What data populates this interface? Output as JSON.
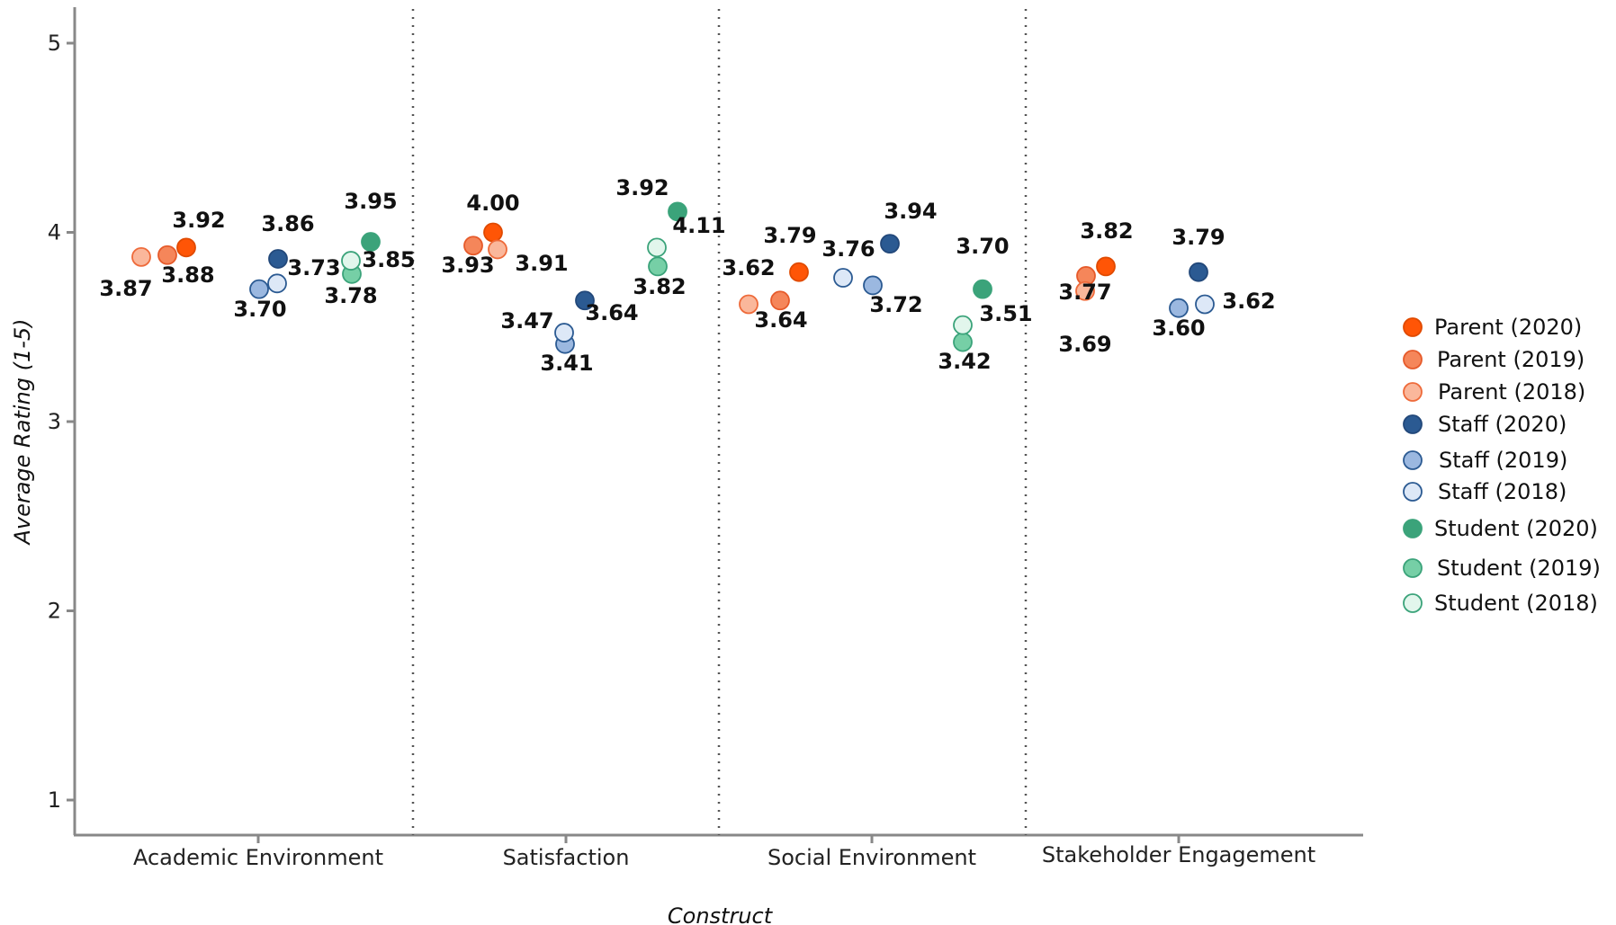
{
  "chart_data": {
    "type": "scatter",
    "title": "",
    "xlabel": "Construct",
    "ylabel": "Average Rating (1-5)",
    "ylim": [
      0.8,
      5.2
    ],
    "yticks": [
      1,
      2,
      3,
      4,
      5
    ],
    "grid": false,
    "legend_position": "right",
    "categories": [
      "Academic Environment",
      "Satisfaction",
      "Social Environment",
      "Stakeholder Engagement"
    ],
    "series": [
      {
        "name": "Parent (2020)",
        "color": "#FF5506",
        "fill": "#FF5506",
        "stroke": "#E04A00",
        "values": [
          3.92,
          4.0,
          3.79,
          3.82
        ]
      },
      {
        "name": "Parent (2019)",
        "color": "#F47E52",
        "fill": "#F5865A",
        "stroke": "#E65A2A",
        "values": [
          3.88,
          3.93,
          3.64,
          3.77
        ]
      },
      {
        "name": "Parent (2018)",
        "color": "#F8B89A",
        "fill": "#FAB79B",
        "stroke": "#EE6A3A",
        "values": [
          3.87,
          3.91,
          3.62,
          3.69
        ]
      },
      {
        "name": "Staff (2020)",
        "color": "#2B5A92",
        "fill": "#2B5A92",
        "stroke": "#22487A",
        "values": [
          3.86,
          3.64,
          3.94,
          3.79
        ]
      },
      {
        "name": "Staff (2019)",
        "color": "#9BB8E0",
        "fill": "#9BB8E0",
        "stroke": "#2B5A92",
        "values": [
          3.7,
          3.41,
          3.72,
          3.6
        ]
      },
      {
        "name": "Staff (2018)",
        "color": "#DDE8F7",
        "fill": "#DDE8F7",
        "stroke": "#2B5A92",
        "values": [
          3.73,
          3.47,
          3.76,
          3.62
        ]
      },
      {
        "name": "Student (2020)",
        "color": "#3BA37A",
        "fill": "#3BA37A",
        "stroke": "#3BA37A",
        "values": [
          3.95,
          4.11,
          3.7,
          null
        ]
      },
      {
        "name": "Student (2019)",
        "color": "#76CFA6",
        "fill": "#76CFA6",
        "stroke": "#3BA37A",
        "values": [
          3.78,
          3.82,
          3.42,
          null
        ]
      },
      {
        "name": "Student (2018)",
        "color": "#DDF5EA",
        "fill": "#E2F6EC",
        "stroke": "#3BA37A",
        "values": [
          3.85,
          3.92,
          3.51,
          null
        ]
      }
    ]
  }
}
